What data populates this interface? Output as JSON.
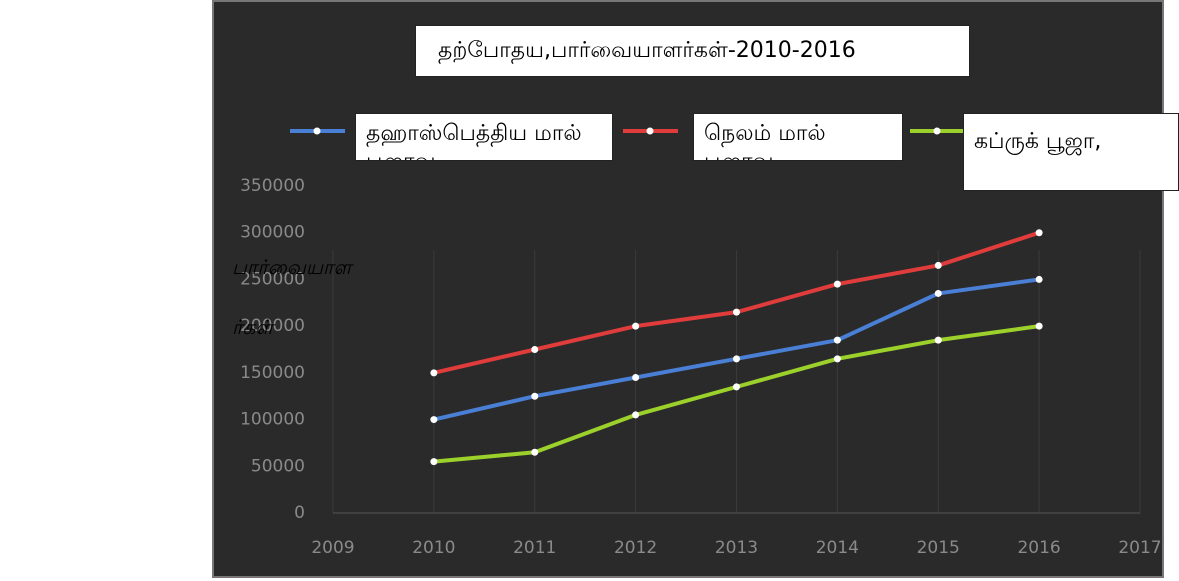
{
  "chart_data": {
    "type": "line",
    "title": "தற்போதய,பார்வையாளர்கள்-2010-2016",
    "y_label_lines": [
      "பார்வையாள",
      "ர்கள்"
    ],
    "x": [
      2010,
      2011,
      2012,
      2013,
      2014,
      2015,
      2016
    ],
    "xlim": [
      2009,
      2017
    ],
    "xticks": [
      2009,
      2010,
      2011,
      2012,
      2013,
      2014,
      2015,
      2016,
      2017
    ],
    "ylim": [
      0,
      350000
    ],
    "yticks": [
      0,
      50000,
      100000,
      150000,
      200000,
      250000,
      300000,
      350000
    ],
    "grid": true,
    "series": [
      {
        "name": "தஹாஸ்பெத்திய மால் பூஜாவ",
        "color": "#4a7fd6",
        "values": [
          100000,
          125000,
          145000,
          165000,
          185000,
          235000,
          250000
        ]
      },
      {
        "name": "நெலம் மால் பூஜாவ",
        "color": "#e03c3c",
        "values": [
          150000,
          175000,
          200000,
          215000,
          245000,
          265000,
          300000
        ]
      },
      {
        "name": "கப்ருக் பூஜா,",
        "color": "#9bd12a",
        "values": [
          55000,
          65000,
          105000,
          135000,
          165000,
          185000,
          200000
        ]
      }
    ]
  }
}
